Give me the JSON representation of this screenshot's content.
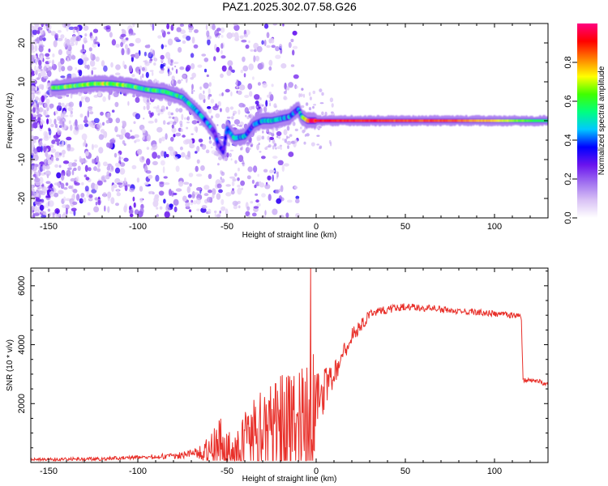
{
  "figure": {
    "title": "PAZ1.2025.302.07.58.G26"
  },
  "colors": {
    "snr_line": "#e8302a",
    "colormap": [
      "#ffffff",
      "#d9c2f5",
      "#a070f0",
      "#6a14ee",
      "#0000ff",
      "#00c8ff",
      "#00ff80",
      "#40ff00",
      "#ffff00",
      "#ff8000",
      "#ff0000",
      "#ff0080"
    ]
  },
  "chart_data": [
    {
      "type": "heatmap",
      "name": "spectrogram",
      "title": "PAZ1.2025.302.07.58.G26",
      "xlabel": "Height of straight line (km)",
      "ylabel": "Frequency (Hz)",
      "xlim": [
        -160,
        130
      ],
      "ylim": [
        -25,
        25
      ],
      "x_ticks": [
        -150,
        -100,
        -50,
        0,
        50,
        100
      ],
      "y_ticks": [
        -20,
        -10,
        0,
        10,
        20
      ],
      "colorbar": {
        "label": "Normalized spectral amplitude",
        "range": [
          0,
          1
        ],
        "ticks": [
          "0.0",
          "0.2",
          "0.4",
          "0.6",
          "0.8"
        ]
      },
      "ridge": {
        "x": [
          -145,
          -135,
          -125,
          -115,
          -105,
          -95,
          -85,
          -75,
          -68,
          -62,
          -57,
          -55,
          -52,
          -50,
          -46,
          -40,
          -35,
          -30,
          -25,
          -20,
          -15,
          -10,
          -8,
          -5,
          0,
          25,
          50,
          75,
          100,
          130
        ],
        "frequency": [
          8.5,
          9,
          9.5,
          9.5,
          9,
          8,
          7.5,
          6,
          3,
          0,
          -3,
          -6,
          -8,
          -2,
          -4.5,
          -4,
          -1,
          0,
          0,
          0.5,
          1,
          3,
          1,
          0,
          0,
          0,
          0,
          0,
          0,
          0
        ],
        "amplitude": [
          0.55,
          0.55,
          0.6,
          0.6,
          0.55,
          0.5,
          0.5,
          0.45,
          0.45,
          0.35,
          0.3,
          0.25,
          0.2,
          0.3,
          0.45,
          0.35,
          0.3,
          0.45,
          0.4,
          0.35,
          0.35,
          0.3,
          0.5,
          0.85,
          0.9,
          0.88,
          0.85,
          0.85,
          0.75,
          0.55
        ]
      }
    },
    {
      "type": "line",
      "name": "snr",
      "xlabel": "Height of straight line (km)",
      "ylabel": "SNR (10 * v/v)",
      "xlim": [
        -160,
        130
      ],
      "ylim": [
        0,
        6600
      ],
      "x_ticks": [
        -150,
        -100,
        -50,
        0,
        50,
        100
      ],
      "y_ticks": [
        2000,
        4000,
        6000
      ],
      "envelope": {
        "x": [
          -160,
          -120,
          -100,
          -80,
          -70,
          -60,
          -55,
          -50,
          -45,
          -40,
          -30,
          -20,
          -10,
          -5,
          -2,
          0,
          10,
          20,
          30,
          40,
          50,
          60,
          70,
          80,
          90,
          100,
          110,
          115,
          116,
          125,
          130
        ],
        "mean": [
          100,
          120,
          180,
          220,
          300,
          400,
          700,
          500,
          400,
          500,
          800,
          1100,
          1300,
          1200,
          1500,
          2000,
          3000,
          4300,
          5000,
          5200,
          5300,
          5250,
          5200,
          5150,
          5100,
          5050,
          5000,
          5000,
          2800,
          2750,
          2650
        ],
        "amplitude": [
          80,
          90,
          100,
          150,
          200,
          450,
          900,
          800,
          500,
          1300,
          1700,
          1900,
          1900,
          2100,
          2800,
          1000,
          400,
          250,
          170,
          150,
          130,
          120,
          120,
          120,
          110,
          100,
          100,
          100,
          80,
          80,
          80
        ]
      },
      "spike": {
        "x": -3,
        "y": 6600
      }
    }
  ]
}
